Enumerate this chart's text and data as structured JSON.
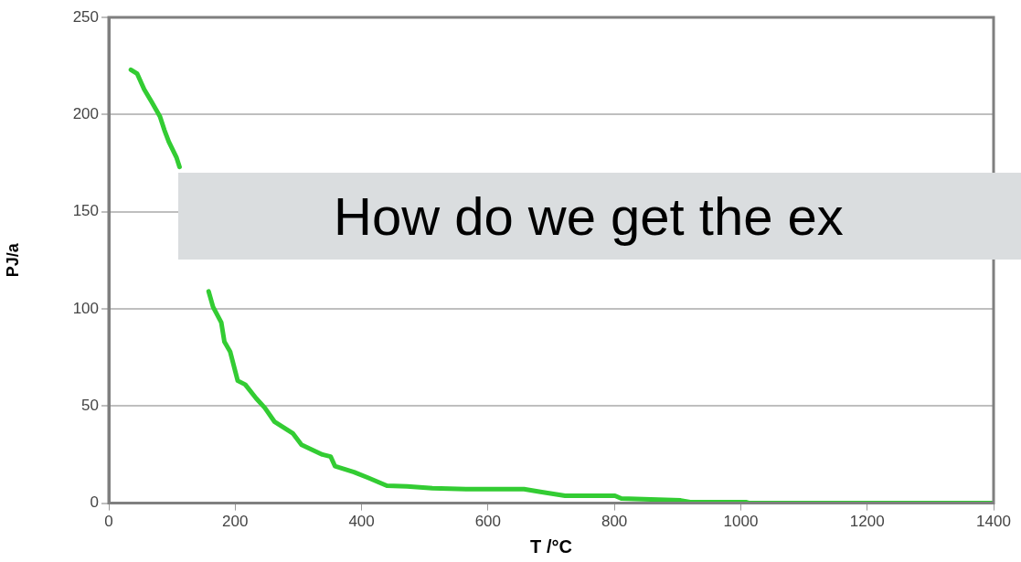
{
  "chart_data": {
    "type": "line",
    "xlabel": "T /°C",
    "ylabel": "PJ/a",
    "annotations": [
      "How do we get the ex"
    ],
    "grid": "y",
    "legend": false,
    "marker": "none",
    "line_style": "solid",
    "xlim": [
      0,
      1400
    ],
    "xticks": [
      0,
      200,
      400,
      600,
      800,
      1000,
      1200,
      1400
    ],
    "ylim": [
      0,
      250
    ],
    "yticks": [
      0,
      50,
      100,
      150,
      200,
      250
    ],
    "series": [
      {
        "color": "#33cc33",
        "x": [
          35,
          45,
          56,
          67,
          81,
          88,
          95,
          107,
          112,
          137,
          158,
          165,
          178,
          183,
          192,
          204,
          216,
          233,
          247,
          262,
          291,
          305,
          338,
          351,
          358,
          388,
          411,
          440,
          472,
          512,
          571,
          657,
          683,
          722,
          801,
          811,
          905,
          920,
          1008,
          1014,
          1400
        ],
        "values": [
          223,
          221,
          213,
          207,
          199,
          192,
          186,
          178,
          173,
          null,
          109,
          101,
          93,
          83,
          78,
          63,
          61,
          54,
          49,
          42,
          36,
          30,
          25,
          24,
          19,
          16,
          13,
          9,
          8.6,
          7.7,
          7.2,
          7.2,
          5.8,
          3.8,
          3.8,
          2.4,
          1.4,
          0.5,
          0.5,
          0,
          0
        ]
      }
    ]
  }
}
